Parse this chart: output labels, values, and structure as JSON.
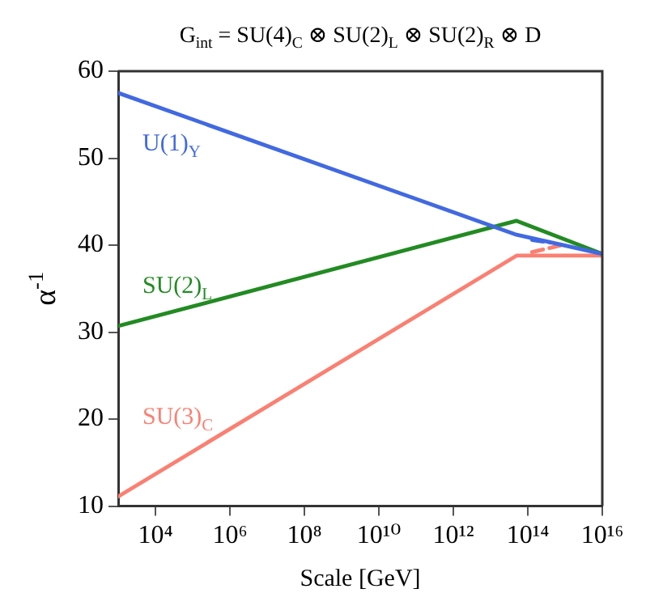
{
  "chart_data": {
    "type": "line",
    "title": "G$_{int}$ = SU(4)$_{C}$ ⊗ SU(2)$_{L}$ ⊗ SU(2)$_{R}$ ⊗ D",
    "xlabel": "Scale [GeV]",
    "ylabel": "α$^{-1}$",
    "log": "x",
    "grid": false,
    "legend": false,
    "marker": "none",
    "line_style": "solid",
    "xlim": [
      1000,
      1e+16
    ],
    "ylim": [
      10,
      60
    ],
    "xticks": [
      {
        "value": 10000,
        "label": "10⁴"
      },
      {
        "value": 1000000,
        "label": "10⁶"
      },
      {
        "value": 100000000,
        "label": "10⁸"
      },
      {
        "value": 10000000000.0,
        "label": "10¹⁰"
      },
      {
        "value": 1000000000000.0,
        "label": "10¹²"
      },
      {
        "value": 100000000000000.0,
        "label": "10¹⁴"
      },
      {
        "value": 1e+16,
        "label": "10¹⁶"
      }
    ],
    "yticks": [
      10,
      20,
      30,
      40,
      50,
      60
    ],
    "series": [
      {
        "name": "U(1)$_{Y}$",
        "color": "#4169e1",
        "x": [
          1000,
          50000000000000.0,
          1e+16
        ],
        "values": [
          57.5,
          41.2,
          39
        ]
      },
      {
        "name": "SU(2)$_{L}$",
        "color": "#228b22",
        "x": [
          1000,
          50000000000000.0,
          1e+16
        ],
        "values": [
          30.7,
          42.8,
          39
        ]
      },
      {
        "name": "SU(3)$_{C}$",
        "color": "#fa8072",
        "x": [
          1000,
          50000000000000.0,
          1e+16
        ],
        "values": [
          11.1,
          38.8,
          38.8
        ]
      },
      {
        "color": "#4169e1",
        "line_style": "dashed",
        "x": [
          130000000000000.0,
          400000000000000.0
        ],
        "values": [
          40.6,
          40.3
        ]
      },
      {
        "color": "#fa8072",
        "line_style": "dashed",
        "x": [
          130000000000000.0,
          800000000000000.0
        ],
        "values": [
          39.2,
          40.0
        ]
      }
    ]
  }
}
